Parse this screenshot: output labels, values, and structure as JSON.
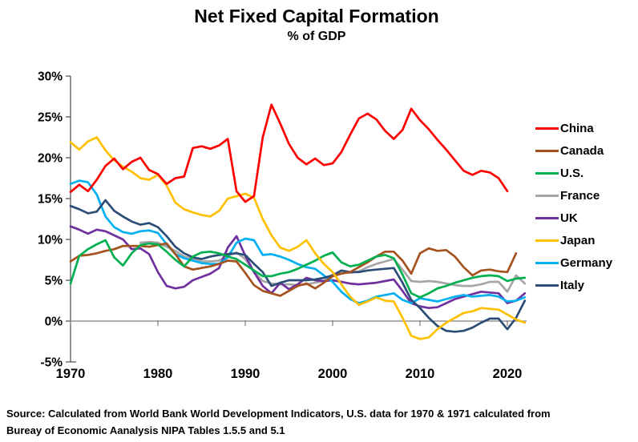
{
  "header": {
    "title": "Net Fixed Capital Formation",
    "subtitle": "% of GDP"
  },
  "chart_data": {
    "type": "line",
    "title": "Net Fixed Capital Formation",
    "subtitle": "% of GDP",
    "xlabel": "",
    "ylabel": "% of GDP",
    "x_axis": {
      "ticks": [
        1970,
        1980,
        1990,
        2000,
        2010,
        2020
      ],
      "range": [
        1970,
        2022
      ]
    },
    "y_axis": {
      "ticks": [
        30,
        25,
        20,
        15,
        10,
        5,
        0,
        -5
      ],
      "tick_labels": [
        "30%",
        "25%",
        "20%",
        "15%",
        "10%",
        "5%",
        "0%",
        "-5%"
      ],
      "range": [
        -5,
        30
      ]
    },
    "grid": "zero-line-only",
    "legend_position": "right",
    "series": [
      {
        "name": "China",
        "color": "#FF0000",
        "start_year": 1970,
        "values": [
          15.8,
          16.7,
          15.9,
          17.3,
          19.0,
          19.9,
          18.6,
          19.5,
          20.0,
          18.5,
          18.0,
          16.8,
          17.5,
          17.7,
          21.2,
          21.4,
          21.1,
          21.5,
          22.3,
          15.9,
          14.6,
          15.3,
          22.5,
          26.5,
          24.2,
          21.7,
          20.0,
          19.2,
          19.9,
          19.1,
          19.3,
          20.7,
          22.8,
          24.8,
          25.4,
          24.7,
          23.3,
          22.3,
          23.4,
          26.0,
          24.6,
          23.5,
          22.2,
          21.0,
          19.7,
          18.4,
          17.9,
          18.4,
          18.2,
          17.5,
          15.9
        ]
      },
      {
        "name": "Canada",
        "color": "#A5521F",
        "start_year": 1970,
        "values": [
          7.3,
          8.0,
          8.1,
          8.3,
          8.6,
          8.8,
          9.2,
          9.2,
          9.2,
          9.1,
          9.3,
          9.5,
          8.2,
          6.7,
          6.3,
          6.5,
          6.7,
          7.0,
          7.4,
          7.3,
          5.9,
          4.4,
          3.7,
          3.4,
          3.1,
          3.7,
          4.3,
          4.6,
          4.0,
          4.7,
          5.5,
          5.8,
          6.0,
          6.6,
          7.2,
          7.9,
          8.5,
          8.5,
          7.4,
          5.8,
          8.3,
          8.9,
          8.6,
          8.7,
          7.9,
          6.6,
          5.6,
          6.2,
          6.3,
          6.1,
          6.0,
          8.3
        ]
      },
      {
        "name": "U.S.",
        "color": "#00B050",
        "start_year": 1970,
        "values": [
          4.6,
          8.0,
          8.8,
          9.4,
          9.9,
          7.8,
          6.8,
          8.3,
          9.3,
          9.5,
          9.4,
          8.5,
          7.5,
          6.7,
          7.9,
          8.4,
          8.5,
          8.3,
          7.9,
          7.6,
          6.9,
          6.2,
          5.5,
          5.5,
          5.8,
          6.0,
          6.4,
          6.9,
          7.4,
          8.0,
          8.4,
          7.2,
          6.7,
          6.9,
          7.4,
          7.9,
          8.1,
          7.7,
          5.7,
          3.4,
          2.9,
          3.4,
          4.0,
          4.3,
          4.7,
          5.0,
          5.3,
          5.5,
          5.6,
          5.5,
          4.9,
          5.2,
          5.3
        ]
      },
      {
        "name": "France",
        "color": "#A6A6A6",
        "start_year": 1978,
        "values": [
          9.6,
          9.7,
          9.6,
          9.1,
          8.6,
          7.9,
          7.6,
          7.3,
          7.3,
          7.4,
          8.0,
          8.4,
          7.6,
          6.0,
          4.9,
          4.6,
          4.5,
          4.5,
          4.4,
          4.5,
          4.7,
          4.9,
          5.7,
          6.0,
          5.9,
          6.1,
          6.6,
          7.0,
          7.3,
          7.6,
          6.3,
          4.9,
          4.8,
          4.9,
          4.8,
          4.6,
          4.4,
          4.3,
          4.3,
          4.5,
          4.8,
          4.8,
          3.6,
          5.6,
          4.6
        ]
      },
      {
        "name": "UK",
        "color": "#7030A0",
        "start_year": 1970,
        "values": [
          11.6,
          11.2,
          10.7,
          11.2,
          11.0,
          10.5,
          10.0,
          8.8,
          8.9,
          8.2,
          6.0,
          4.3,
          4.0,
          4.2,
          5.0,
          5.4,
          5.8,
          6.5,
          9.0,
          10.4,
          8.0,
          6.0,
          4.3,
          3.4,
          4.7,
          3.9,
          4.5,
          5.3,
          5.0,
          4.9,
          5.0,
          4.8,
          4.6,
          4.5,
          4.6,
          4.7,
          4.9,
          5.1,
          3.7,
          2.2,
          1.8,
          1.6,
          1.7,
          2.2,
          2.7,
          3.0,
          3.3,
          3.6,
          3.5,
          3.4,
          2.2,
          2.5,
          3.4
        ]
      },
      {
        "name": "Japan",
        "color": "#FFC000",
        "start_year": 1970,
        "values": [
          21.9,
          21.0,
          22.0,
          22.5,
          20.9,
          19.7,
          18.9,
          18.3,
          17.5,
          17.3,
          17.9,
          16.6,
          14.5,
          13.7,
          13.3,
          13.0,
          12.8,
          13.5,
          15.0,
          15.3,
          15.6,
          15.1,
          12.5,
          10.5,
          9.0,
          8.6,
          9.1,
          9.9,
          8.3,
          7.0,
          6.0,
          4.5,
          3.0,
          2.0,
          2.4,
          2.9,
          2.5,
          2.4,
          0.4,
          -1.8,
          -2.2,
          -2.0,
          -1.0,
          -0.2,
          0.4,
          1.0,
          1.2,
          1.6,
          1.5,
          1.4,
          0.8,
          0.2,
          -0.2
        ]
      },
      {
        "name": "Germany",
        "color": "#00B0F0",
        "start_year": 1970,
        "values": [
          16.8,
          17.2,
          17.0,
          15.5,
          12.8,
          11.5,
          10.9,
          10.7,
          11.0,
          11.1,
          10.8,
          9.4,
          8.2,
          7.7,
          7.4,
          7.1,
          7.0,
          7.0,
          7.8,
          9.6,
          10.1,
          9.9,
          8.1,
          8.2,
          7.9,
          7.5,
          7.0,
          6.6,
          6.4,
          5.6,
          4.8,
          3.6,
          2.7,
          2.2,
          2.5,
          3.0,
          3.2,
          3.4,
          2.6,
          2.2,
          2.8,
          2.6,
          2.4,
          2.7,
          3.0,
          3.2,
          3.0,
          3.1,
          3.2,
          3.0,
          2.4,
          2.5,
          2.9
        ]
      },
      {
        "name": "Italy",
        "color": "#2B4D77",
        "start_year": 1970,
        "values": [
          14.1,
          13.7,
          13.2,
          13.4,
          14.8,
          13.5,
          12.8,
          12.2,
          11.8,
          12.0,
          11.5,
          10.4,
          9.1,
          8.3,
          7.8,
          7.6,
          7.9,
          8.1,
          8.2,
          8.3,
          8.1,
          7.0,
          6.0,
          4.3,
          4.7,
          5.0,
          5.0,
          5.0,
          5.1,
          5.3,
          5.6,
          6.2,
          6.0,
          6.0,
          6.2,
          6.3,
          6.4,
          6.5,
          4.7,
          2.6,
          1.6,
          0.4,
          -0.6,
          -1.2,
          -1.3,
          -1.2,
          -0.8,
          -0.2,
          0.3,
          0.3,
          -1.0,
          0.4,
          2.5
        ]
      }
    ]
  },
  "legend": {
    "items": [
      {
        "label": "China",
        "color": "#FF0000"
      },
      {
        "label": "Canada",
        "color": "#A5521F"
      },
      {
        "label": "U.S.",
        "color": "#00B050"
      },
      {
        "label": "France",
        "color": "#A6A6A6"
      },
      {
        "label": "UK",
        "color": "#7030A0"
      },
      {
        "label": "Japan",
        "color": "#FFC000"
      },
      {
        "label": "Germany",
        "color": "#00B0F0"
      },
      {
        "label": "Italy",
        "color": "#2B4D77"
      }
    ]
  },
  "source": {
    "line1": "Source:  Calculated from World Bank World Development Indicators, U.S. data for 1970 & 1971 calculated from",
    "line2": "Bureay of Economic Aanalysis NIPA Tables 1.5.5 and 5.1"
  }
}
